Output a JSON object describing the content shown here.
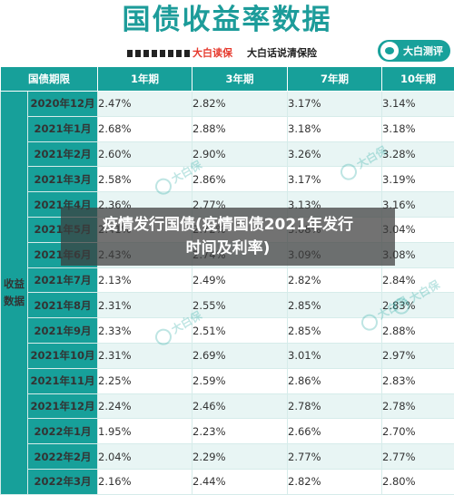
{
  "title": "国债收益率数据",
  "subtitle": {
    "red": "大白读保",
    "black": "大白话说清保险"
  },
  "badge": {
    "label": "大白测评"
  },
  "table": {
    "headers": [
      "国债期限",
      "1年期",
      "3年期",
      "7年期",
      "10年期"
    ],
    "vertical_label": "收益\n数据",
    "rows": [
      {
        "date": "2020年12月",
        "v": [
          "2.47%",
          "2.82%",
          "3.17%",
          "3.14%"
        ]
      },
      {
        "date": "2021年1月",
        "v": [
          "2.68%",
          "2.88%",
          "3.18%",
          "3.18%"
        ]
      },
      {
        "date": "2021年2月",
        "v": [
          "2.60%",
          "2.90%",
          "3.26%",
          "3.28%"
        ]
      },
      {
        "date": "2021年3月",
        "v": [
          "2.58%",
          "2.86%",
          "3.17%",
          "3.19%"
        ]
      },
      {
        "date": "2021年4月",
        "v": [
          "2.36%",
          "2.77%",
          "3.13%",
          "3.16%"
        ]
      },
      {
        "date": "2021年5月",
        "v": [
          "2.41%",
          "2.72%",
          "3.08%",
          "3.04%"
        ]
      },
      {
        "date": "2021年6月",
        "v": [
          "2.43%",
          "2.74%",
          "3.09%",
          "3.08%"
        ]
      },
      {
        "date": "2021年7月",
        "v": [
          "2.13%",
          "2.49%",
          "2.82%",
          "2.84%"
        ]
      },
      {
        "date": "2021年8月",
        "v": [
          "2.31%",
          "2.55%",
          "2.85%",
          "2.83%"
        ]
      },
      {
        "date": "2021年9月",
        "v": [
          "2.33%",
          "2.51%",
          "2.85%",
          "2.88%"
        ]
      },
      {
        "date": "2021年10月",
        "v": [
          "2.31%",
          "2.69%",
          "3.01%",
          "2.97%"
        ]
      },
      {
        "date": "2021年11月",
        "v": [
          "2.25%",
          "2.59%",
          "2.86%",
          "2.83%"
        ]
      },
      {
        "date": "2021年12月",
        "v": [
          "2.24%",
          "2.46%",
          "2.78%",
          "2.78%"
        ]
      },
      {
        "date": "2022年1月",
        "v": [
          "1.95%",
          "2.23%",
          "2.66%",
          "2.70%"
        ]
      },
      {
        "date": "2022年2月",
        "v": [
          "2.04%",
          "2.29%",
          "2.77%",
          "2.77%"
        ]
      },
      {
        "date": "2022年3月",
        "v": [
          "2.16%",
          "2.44%",
          "2.82%",
          "2.80%"
        ]
      }
    ]
  },
  "watermark": "大白保",
  "overlay": {
    "line1": "疫情发行国债(疫情国债2021年发行",
    "line2": "时间及利率)"
  },
  "colors": {
    "teal": "#17a09a",
    "red": "#e63a2e"
  }
}
